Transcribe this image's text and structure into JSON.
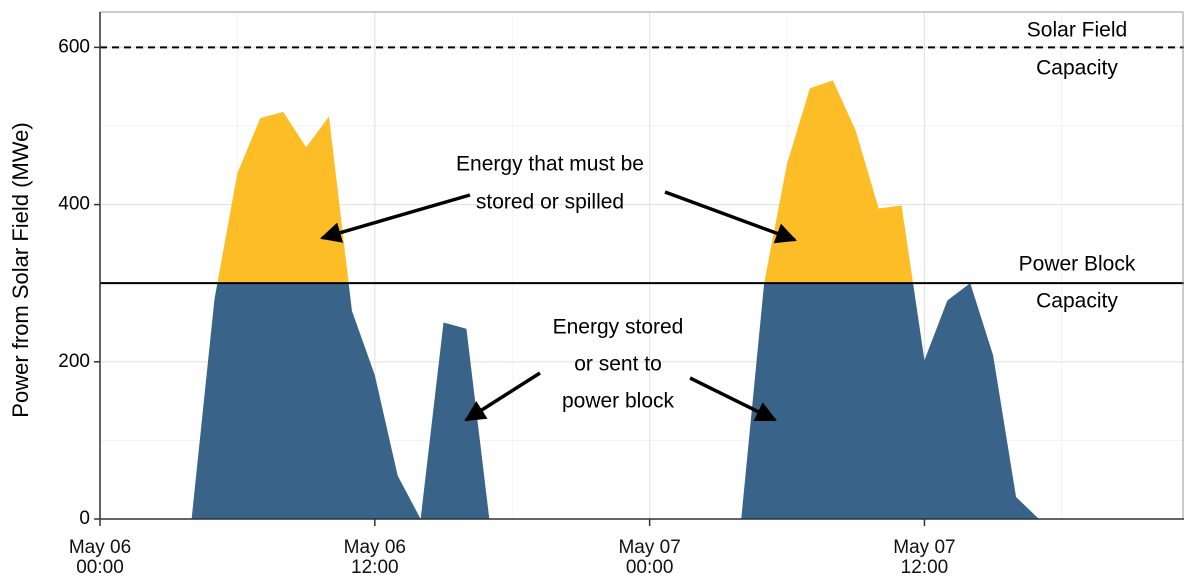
{
  "chart_data": {
    "type": "area",
    "y_label": "Power from Solar Field (MWe)",
    "x": [
      "May 06 04:00",
      "May 06 05:00",
      "May 06 06:00",
      "May 06 07:00",
      "May 06 08:00",
      "May 06 09:00",
      "May 06 10:00",
      "May 06 11:00",
      "May 06 12:00",
      "May 06 13:00",
      "May 06 14:00",
      "May 06 15:00",
      "May 06 16:00",
      "May 06 17:00",
      "May 07 04:00",
      "May 07 05:00",
      "May 07 06:00",
      "May 07 07:00",
      "May 07 08:00",
      "May 07 09:00",
      "May 07 10:00",
      "May 07 11:00",
      "May 07 12:00",
      "May 07 13:00",
      "May 07 14:00",
      "May 07 15:00",
      "May 07 16:00",
      "May 07 17:00"
    ],
    "series": [
      {
        "color_below": "#3a6389",
        "color_above": "#fcbd26",
        "values": [
          0,
          280,
          440,
          510,
          518,
          473,
          512,
          265,
          183,
          55,
          0,
          250,
          242,
          0,
          0,
          300,
          452,
          548,
          558,
          494,
          395,
          399,
          202,
          278,
          300,
          208,
          28,
          0
        ]
      }
    ],
    "xlim": [
      "May 06 00:00",
      "May 07 23:20"
    ],
    "xticks": [
      "May 06 00:00",
      "May 06 12:00",
      "May 07 00:00",
      "May 07 12:00"
    ],
    "ylim": [
      0,
      645
    ],
    "yticks": [
      0,
      200,
      400,
      600
    ],
    "grid": true,
    "hlines": [
      {
        "value": 600,
        "style": "dashed",
        "lines": [
          "Solar Field",
          "Capacity"
        ]
      },
      {
        "value": 300,
        "style": "solid",
        "lines": [
          "Power Block",
          "Capacity"
        ],
        "fill_split": true
      }
    ],
    "annotations": [
      {
        "lines": [
          "Energy that must be",
          "stored or spilled"
        ]
      },
      {
        "lines": [
          "Energy stored",
          "or sent to",
          "power block"
        ]
      }
    ]
  }
}
